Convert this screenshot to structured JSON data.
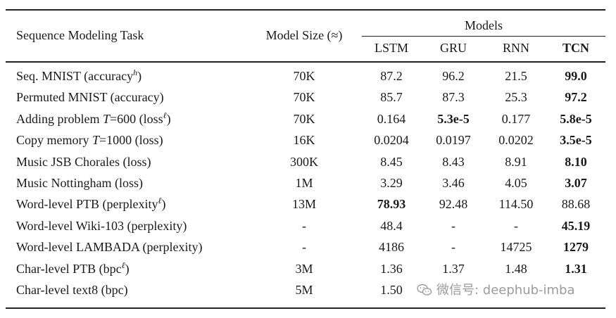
{
  "table": {
    "header": {
      "task": "Sequence Modeling Task",
      "size": "Model Size (≈)",
      "models": "Models",
      "cols": [
        "LSTM",
        "GRU",
        "RNN",
        "TCN"
      ]
    },
    "rows": [
      {
        "pre": "Seq. MNIST (accuracy",
        "sup": "h",
        "post": ")",
        "size": "70K",
        "vals": [
          "87.2",
          "96.2",
          "21.5",
          "99.0"
        ],
        "bold": [
          false,
          false,
          false,
          true
        ]
      },
      {
        "pre": "Permuted MNIST (accuracy)",
        "sup": "",
        "post": "",
        "size": "70K",
        "vals": [
          "85.7",
          "87.3",
          "25.3",
          "97.2"
        ],
        "bold": [
          false,
          false,
          false,
          true
        ]
      },
      {
        "pre": "Adding problem ",
        "var": "T",
        "mid": "=600 (loss",
        "sup": "ℓ",
        "post": ")",
        "size": "70K",
        "vals": [
          "0.164",
          "5.3e-5",
          "0.177",
          "5.8e-5"
        ],
        "bold": [
          false,
          true,
          false,
          true
        ]
      },
      {
        "pre": "Copy memory ",
        "var": "T",
        "mid": "=1000 (loss)",
        "sup": "",
        "post": "",
        "size": "16K",
        "vals": [
          "0.0204",
          "0.0197",
          "0.0202",
          "3.5e-5"
        ],
        "bold": [
          false,
          false,
          false,
          true
        ]
      },
      {
        "pre": "Music JSB Chorales (loss)",
        "sup": "",
        "post": "",
        "size": "300K",
        "vals": [
          "8.45",
          "8.43",
          "8.91",
          "8.10"
        ],
        "bold": [
          false,
          false,
          false,
          true
        ]
      },
      {
        "pre": "Music Nottingham (loss)",
        "sup": "",
        "post": "",
        "size": "1M",
        "vals": [
          "3.29",
          "3.46",
          "4.05",
          "3.07"
        ],
        "bold": [
          false,
          false,
          false,
          true
        ]
      },
      {
        "pre": "Word-level PTB (perplexity",
        "sup": "ℓ",
        "post": ")",
        "size": "13M",
        "vals": [
          "78.93",
          "92.48",
          "114.50",
          "88.68"
        ],
        "bold": [
          true,
          false,
          false,
          false
        ]
      },
      {
        "pre": "Word-level Wiki-103 (perplexity)",
        "sup": "",
        "post": "",
        "size": "-",
        "vals": [
          "48.4",
          "-",
          "-",
          "45.19"
        ],
        "bold": [
          false,
          false,
          false,
          true
        ]
      },
      {
        "pre": "Word-level LAMBADA (perplexity)",
        "sup": "",
        "post": "",
        "size": "-",
        "vals": [
          "4186",
          "-",
          "14725",
          "1279"
        ],
        "bold": [
          false,
          false,
          false,
          true
        ]
      },
      {
        "pre": "Char-level PTB (bpc",
        "sup": "ℓ",
        "post": ")",
        "size": "3M",
        "vals": [
          "1.36",
          "1.37",
          "1.48",
          "1.31"
        ],
        "bold": [
          false,
          false,
          false,
          true
        ]
      },
      {
        "pre": "Char-level text8 (bpc)",
        "sup": "",
        "post": "",
        "size": "5M",
        "vals": [
          "1.50",
          "",
          "",
          ""
        ],
        "bold": [
          false,
          false,
          false,
          true
        ]
      }
    ]
  },
  "watermark": {
    "text": "微信号: deephub-imba",
    "icon": "wechat-icon"
  }
}
